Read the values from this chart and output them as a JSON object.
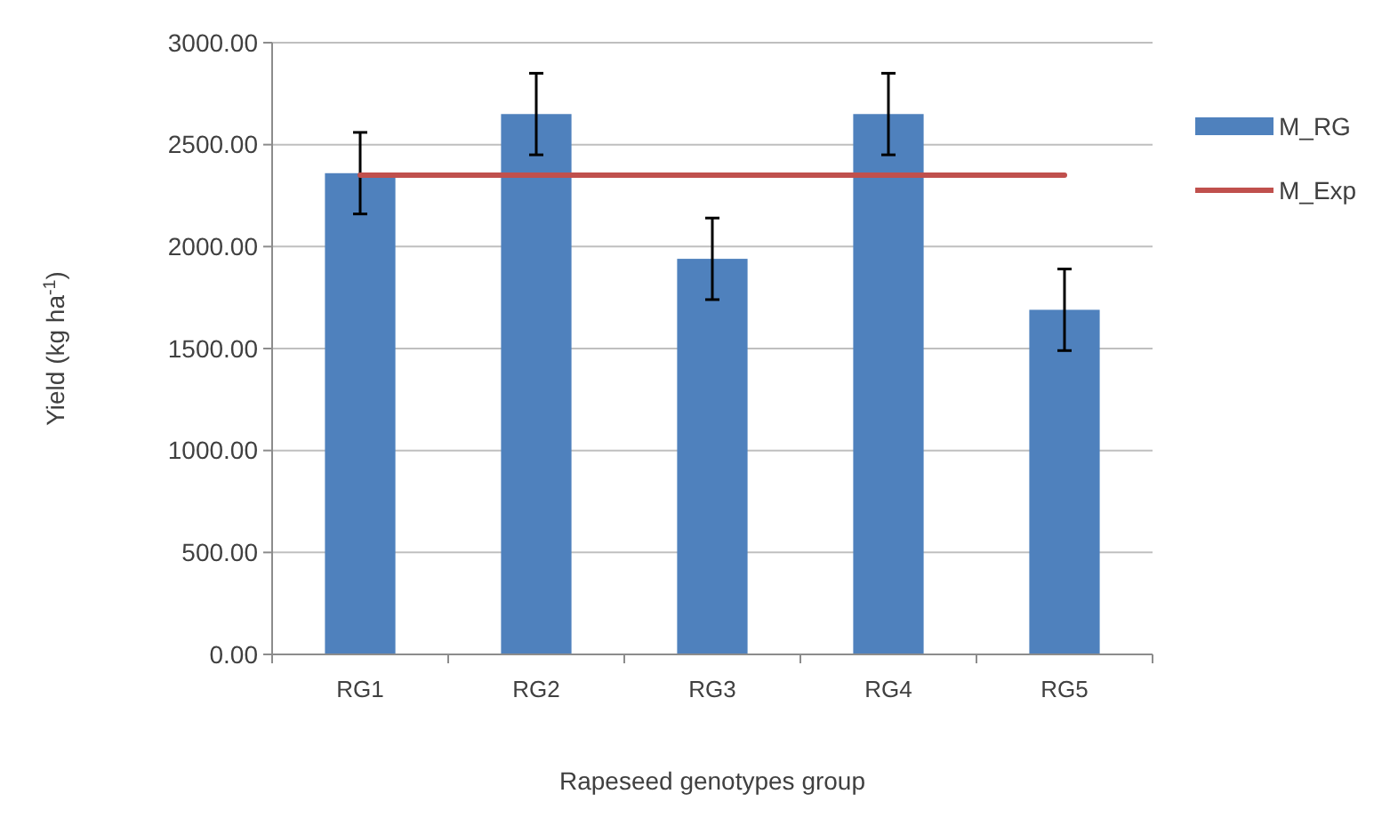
{
  "chart_data": {
    "type": "bar",
    "xlabel": "Rapeseed genotypes group",
    "ylabel": "Yield (kg ha$^{-1}$)",
    "categories": [
      "RG1",
      "RG2",
      "RG3",
      "RG4",
      "RG5"
    ],
    "series": [
      {
        "name": "M_RG",
        "color": "#4f81bd",
        "values": [
          2360,
          2650,
          1940,
          2650,
          1690
        ],
        "errors": [
          200,
          200,
          200,
          200,
          200
        ]
      },
      {
        "name": "M_Exp",
        "type": "line",
        "color": "#c0504d",
        "values": [
          2350,
          2350,
          2350,
          2350,
          2350
        ],
        "marker": "none"
      }
    ],
    "ylim": [
      0,
      3000
    ],
    "yticks": [
      {
        "value": 0,
        "label": "0.00"
      },
      {
        "value": 500,
        "label": "500.00"
      },
      {
        "value": 1000,
        "label": "1000.00"
      },
      {
        "value": 1500,
        "label": "1500.00"
      },
      {
        "value": 2000,
        "label": "2000.00"
      },
      {
        "value": 2500,
        "label": "2500.00"
      },
      {
        "value": 3000,
        "label": "3000.00"
      }
    ],
    "grid": "y",
    "legend": "right"
  }
}
